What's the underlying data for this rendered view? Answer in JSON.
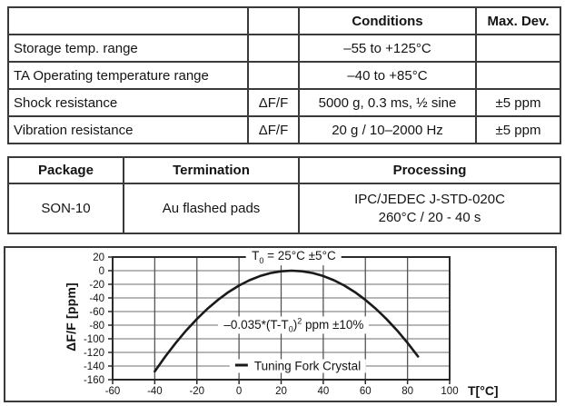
{
  "page": {
    "background": "#ffffff",
    "text_color": "#141414",
    "border_color": "#3a3a3a"
  },
  "spec_table": {
    "col_headers": [
      "",
      "",
      "Conditions",
      "Max. Dev."
    ],
    "rows": [
      {
        "parameter": "Storage temp. range",
        "symbol": "",
        "conditions": "–55 to +125°C",
        "max_dev": ""
      },
      {
        "parameter": "TA Operating temperature range",
        "symbol": "",
        "conditions": "–40 to +85°C",
        "max_dev": ""
      },
      {
        "parameter": "Shock resistance",
        "symbol": "ΔF/F",
        "conditions": "5000 g, 0.3 ms, ½ sine",
        "max_dev": "±5 ppm"
      },
      {
        "parameter": "Vibration resistance",
        "symbol": "ΔF/F",
        "conditions": "20 g / 10–2000 Hz",
        "max_dev": "±5 ppm"
      }
    ]
  },
  "package_table": {
    "col_headers": [
      "Package",
      "Termination",
      "Processing"
    ],
    "row": {
      "package": "SON-10",
      "termination": "Au flashed pads",
      "processing_line1": "IPC/JEDEC J-STD-020C",
      "processing_line2": "260°C / 20 - 40 s"
    }
  },
  "chart_data": {
    "type": "line",
    "title": "",
    "xlabel": "T[°C]",
    "ylabel": "ΔF/F [ppm]",
    "xlim": [
      -60,
      100
    ],
    "ylim": [
      -160,
      20
    ],
    "x_ticks": [
      -60,
      -40,
      -20,
      0,
      20,
      40,
      60,
      80,
      100
    ],
    "y_ticks": [
      20,
      0,
      -20,
      -40,
      -60,
      -80,
      -100,
      -120,
      -140,
      -160
    ],
    "grid": true,
    "legend": {
      "label": "Tuning Fork Crystal",
      "position": "inside-bottom-center"
    },
    "annotations": {
      "t0": {
        "pre": "T",
        "sub": "0",
        "post": " = 25°C ±5°C",
        "anchor": {
          "x": 26,
          "y": 20
        }
      },
      "formula": {
        "pre": "–0.035*(T-T",
        "sub": "0",
        "mid": ")",
        "sup": "2",
        "post": " ppm ±10%",
        "anchor": {
          "x": 26,
          "y": -80
        }
      },
      "legend_anchor": {
        "x": 28,
        "y": -140
      }
    },
    "series": [
      {
        "name": "Tuning Fork Crystal",
        "formula": "ΔF/F = –0.035·(T–25)² ppm, T0 = 25°C",
        "color": "#1a1a1a",
        "x": [
          -40,
          -35,
          -30,
          -25,
          -20,
          -15,
          -10,
          -5,
          0,
          5,
          10,
          15,
          20,
          25,
          30,
          35,
          40,
          45,
          50,
          55,
          60,
          65,
          70,
          75,
          80,
          85
        ],
        "y": [
          -147.9,
          -126,
          -105.9,
          -87.5,
          -70.9,
          -56,
          -42.9,
          -31.5,
          -21.9,
          -14,
          -7.9,
          -3.5,
          -0.9,
          0,
          -0.9,
          -3.5,
          -7.9,
          -14,
          -21.9,
          -31.5,
          -42.9,
          -56,
          -70.9,
          -87.5,
          -105.9,
          -126
        ]
      }
    ],
    "colors": {
      "curve": "#1a1a1a",
      "grid_h": "#8c8c8c",
      "grid_v": "#555555",
      "plot_border": "#2a2a2a",
      "tick": "#2a2a2a"
    }
  }
}
